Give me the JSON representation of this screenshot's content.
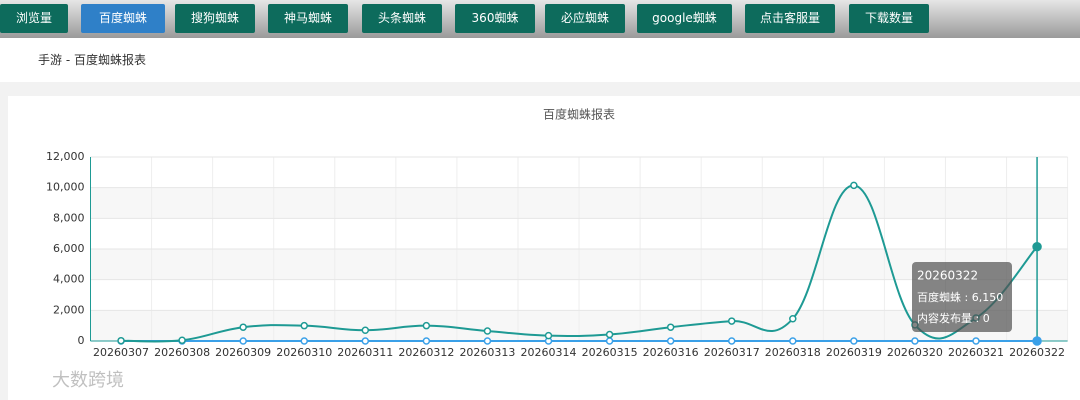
{
  "nav": [
    "浏览量",
    "百度蜘蛛",
    "搜狗蜘蛛",
    "神马蜘蛛",
    "头条蜘蛛",
    "360蜘蛛",
    "必应蜘蛛",
    "google蜘蛛",
    "点击客服量",
    "下载数量"
  ],
  "active_nav": 1,
  "breadcrumb": "手游 - 百度蜘蛛报表",
  "chart_data": {
    "type": "line",
    "title": "百度蜘蛛报表",
    "categories": [
      "20260307",
      "20260308",
      "20260309",
      "20260310",
      "20260311",
      "20260312",
      "20260313",
      "20260314",
      "20260315",
      "20260316",
      "20260317",
      "20260318",
      "20260319",
      "20260320",
      "20260321",
      "20260322"
    ],
    "series": [
      {
        "name": "百度蜘蛛",
        "color": "#1e9a94",
        "values": [
          20,
          50,
          900,
          1000,
          700,
          1000,
          650,
          350,
          420,
          900,
          1300,
          1450,
          10150,
          1050,
          1500,
          6150
        ]
      },
      {
        "name": "内容发布量",
        "color": "#3aa0e8",
        "values": [
          0,
          0,
          0,
          0,
          0,
          0,
          0,
          0,
          0,
          0,
          0,
          0,
          0,
          0,
          0,
          0
        ]
      }
    ],
    "ylim": [
      0,
      12000
    ],
    "yticks": [
      0,
      {
        "value": 2000,
        "label": "2,000"
      },
      {
        "value": 4000,
        "label": "4,000"
      },
      {
        "value": 6000,
        "label": "6,000"
      },
      {
        "value": 8000,
        "label": "8,000"
      },
      {
        "value": 10000,
        "label": "10,000"
      },
      {
        "value": 12000,
        "label": "12,000"
      }
    ],
    "grid": true,
    "tooltip": {
      "title": "20260322",
      "lines": [
        "百度蜘蛛 : 6,150",
        "内容发布量 : 0"
      ]
    }
  },
  "watermark": "大数跨境"
}
